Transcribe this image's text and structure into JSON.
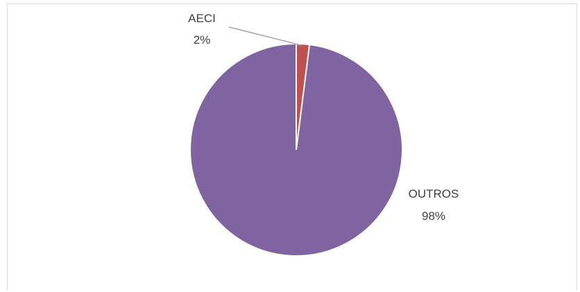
{
  "chart_data": {
    "type": "pie",
    "title": "",
    "categories": [
      "AECI",
      "OUTROS"
    ],
    "values": [
      2,
      98
    ],
    "units": "%",
    "colors": [
      "#c0504d",
      "#8064a2"
    ],
    "labels": [
      {
        "name": "AECI",
        "value_label": "2%"
      },
      {
        "name": "OUTROS",
        "value_label": "98%"
      }
    ],
    "legend": "none",
    "leader_line_color": "#a6a6a6",
    "start_angle_deg": 0,
    "direction": "clockwise"
  }
}
